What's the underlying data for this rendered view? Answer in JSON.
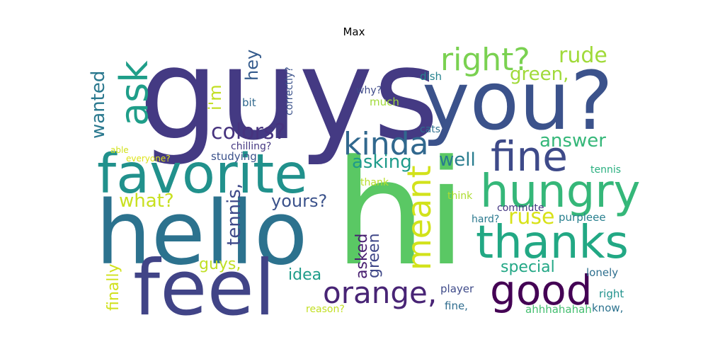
{
  "title": "Max",
  "words": [
    {
      "text": "guys",
      "color": "#443a83"
    },
    {
      "text": "hi",
      "color": "#5ac864"
    },
    {
      "text": "hello",
      "color": "#2c728e"
    },
    {
      "text": "you?",
      "color": "#3b528b"
    },
    {
      "text": "feel",
      "color": "#414487"
    },
    {
      "text": "favorite",
      "color": "#21918c"
    },
    {
      "text": "thanks",
      "color": "#22a884"
    },
    {
      "text": "hungry",
      "color": "#35b779"
    },
    {
      "text": "fine",
      "color": "#3e4a89"
    },
    {
      "text": "good",
      "color": "#440154"
    },
    {
      "text": "orange,",
      "color": "#482475"
    },
    {
      "text": "ask",
      "color": "#1f9e89"
    },
    {
      "text": "right?",
      "color": "#7ad151"
    },
    {
      "text": "kinda",
      "color": "#31688e"
    },
    {
      "text": "meant",
      "color": "#d2e21b"
    },
    {
      "text": "colors?",
      "color": "#46337e"
    },
    {
      "text": "rude",
      "color": "#a0da39"
    },
    {
      "text": "green,",
      "color": "#a0da39"
    },
    {
      "text": "wanted",
      "color": "#2a788e"
    },
    {
      "text": "hey",
      "color": "#365c8d"
    },
    {
      "text": "i'm",
      "color": "#c2df23"
    },
    {
      "text": "answer",
      "color": "#35b779"
    },
    {
      "text": "asking",
      "color": "#1e9b8a"
    },
    {
      "text": "well",
      "color": "#287c8e"
    },
    {
      "text": "what?",
      "color": "#c8e020"
    },
    {
      "text": "tennis,",
      "color": "#3e4989"
    },
    {
      "text": "yours?",
      "color": "#3b528b"
    },
    {
      "text": "ruse",
      "color": "#d8e219"
    },
    {
      "text": "asked",
      "color": "#481f70"
    },
    {
      "text": "green",
      "color": "#3f4788"
    },
    {
      "text": "special",
      "color": "#22a785"
    },
    {
      "text": "idea",
      "color": "#1e9c89"
    },
    {
      "text": "guys,",
      "color": "#c0df25"
    },
    {
      "text": "finally",
      "color": "#d0e11c"
    },
    {
      "text": "lonely",
      "color": "#2e6f8e"
    },
    {
      "text": "right",
      "color": "#20928c"
    },
    {
      "text": "know,",
      "color": "#2c728e"
    },
    {
      "text": "fine,",
      "color": "#2f6c8e"
    },
    {
      "text": "player",
      "color": "#3e4a89"
    },
    {
      "text": "ahhhahahah",
      "color": "#44bf70"
    },
    {
      "text": "reason?",
      "color": "#c2df23"
    },
    {
      "text": "commute",
      "color": "#453882"
    },
    {
      "text": "purpleee",
      "color": "#277f8e"
    },
    {
      "text": "hard?",
      "color": "#2a788e"
    },
    {
      "text": "think",
      "color": "#addc30"
    },
    {
      "text": "thank",
      "color": "#b8de29"
    },
    {
      "text": "tennis",
      "color": "#29af7f"
    },
    {
      "text": "studying",
      "color": "#3b528b"
    },
    {
      "text": "chilling?",
      "color": "#453882"
    },
    {
      "text": "everyone?",
      "color": "#dde318"
    },
    {
      "text": "able",
      "color": "#d0e11c"
    },
    {
      "text": "cats",
      "color": "#2e6e8e"
    },
    {
      "text": "much",
      "color": "#a0da39"
    },
    {
      "text": "bit",
      "color": "#31688e"
    },
    {
      "text": "why?",
      "color": "#3e4a89"
    },
    {
      "text": "dish",
      "color": "#26828e"
    },
    {
      "text": "correctly?",
      "color": "#3b528b"
    }
  ]
}
